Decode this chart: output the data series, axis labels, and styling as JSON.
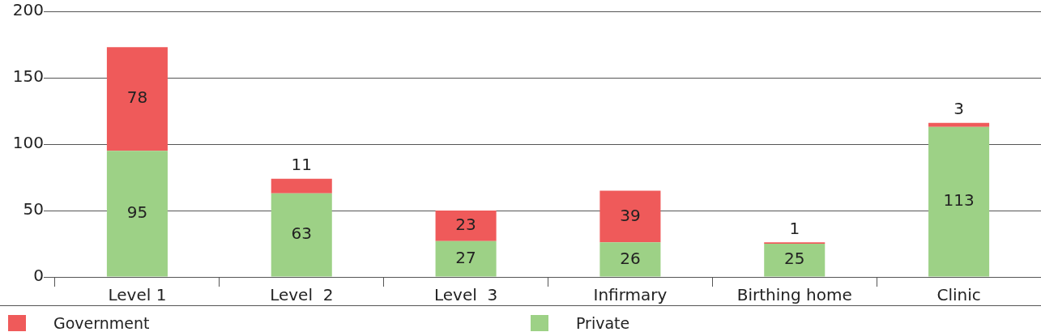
{
  "chart_data": {
    "type": "bar",
    "stacked": true,
    "categories": [
      "Level 1",
      "Level  2",
      "Level  3",
      "Infirmary",
      "Birthing home",
      "Clinic"
    ],
    "series": [
      {
        "name": "Private",
        "color": "#9dd186",
        "values": [
          95,
          63,
          27,
          26,
          25,
          113
        ]
      },
      {
        "name": "Government",
        "color": "#ef5a5a",
        "values": [
          78,
          11,
          23,
          39,
          1,
          3
        ]
      }
    ],
    "ylim": [
      0,
      200
    ],
    "yticks": [
      0,
      50,
      100,
      150,
      200
    ],
    "grid": "y",
    "legend": "bottom",
    "data_labels": true
  }
}
